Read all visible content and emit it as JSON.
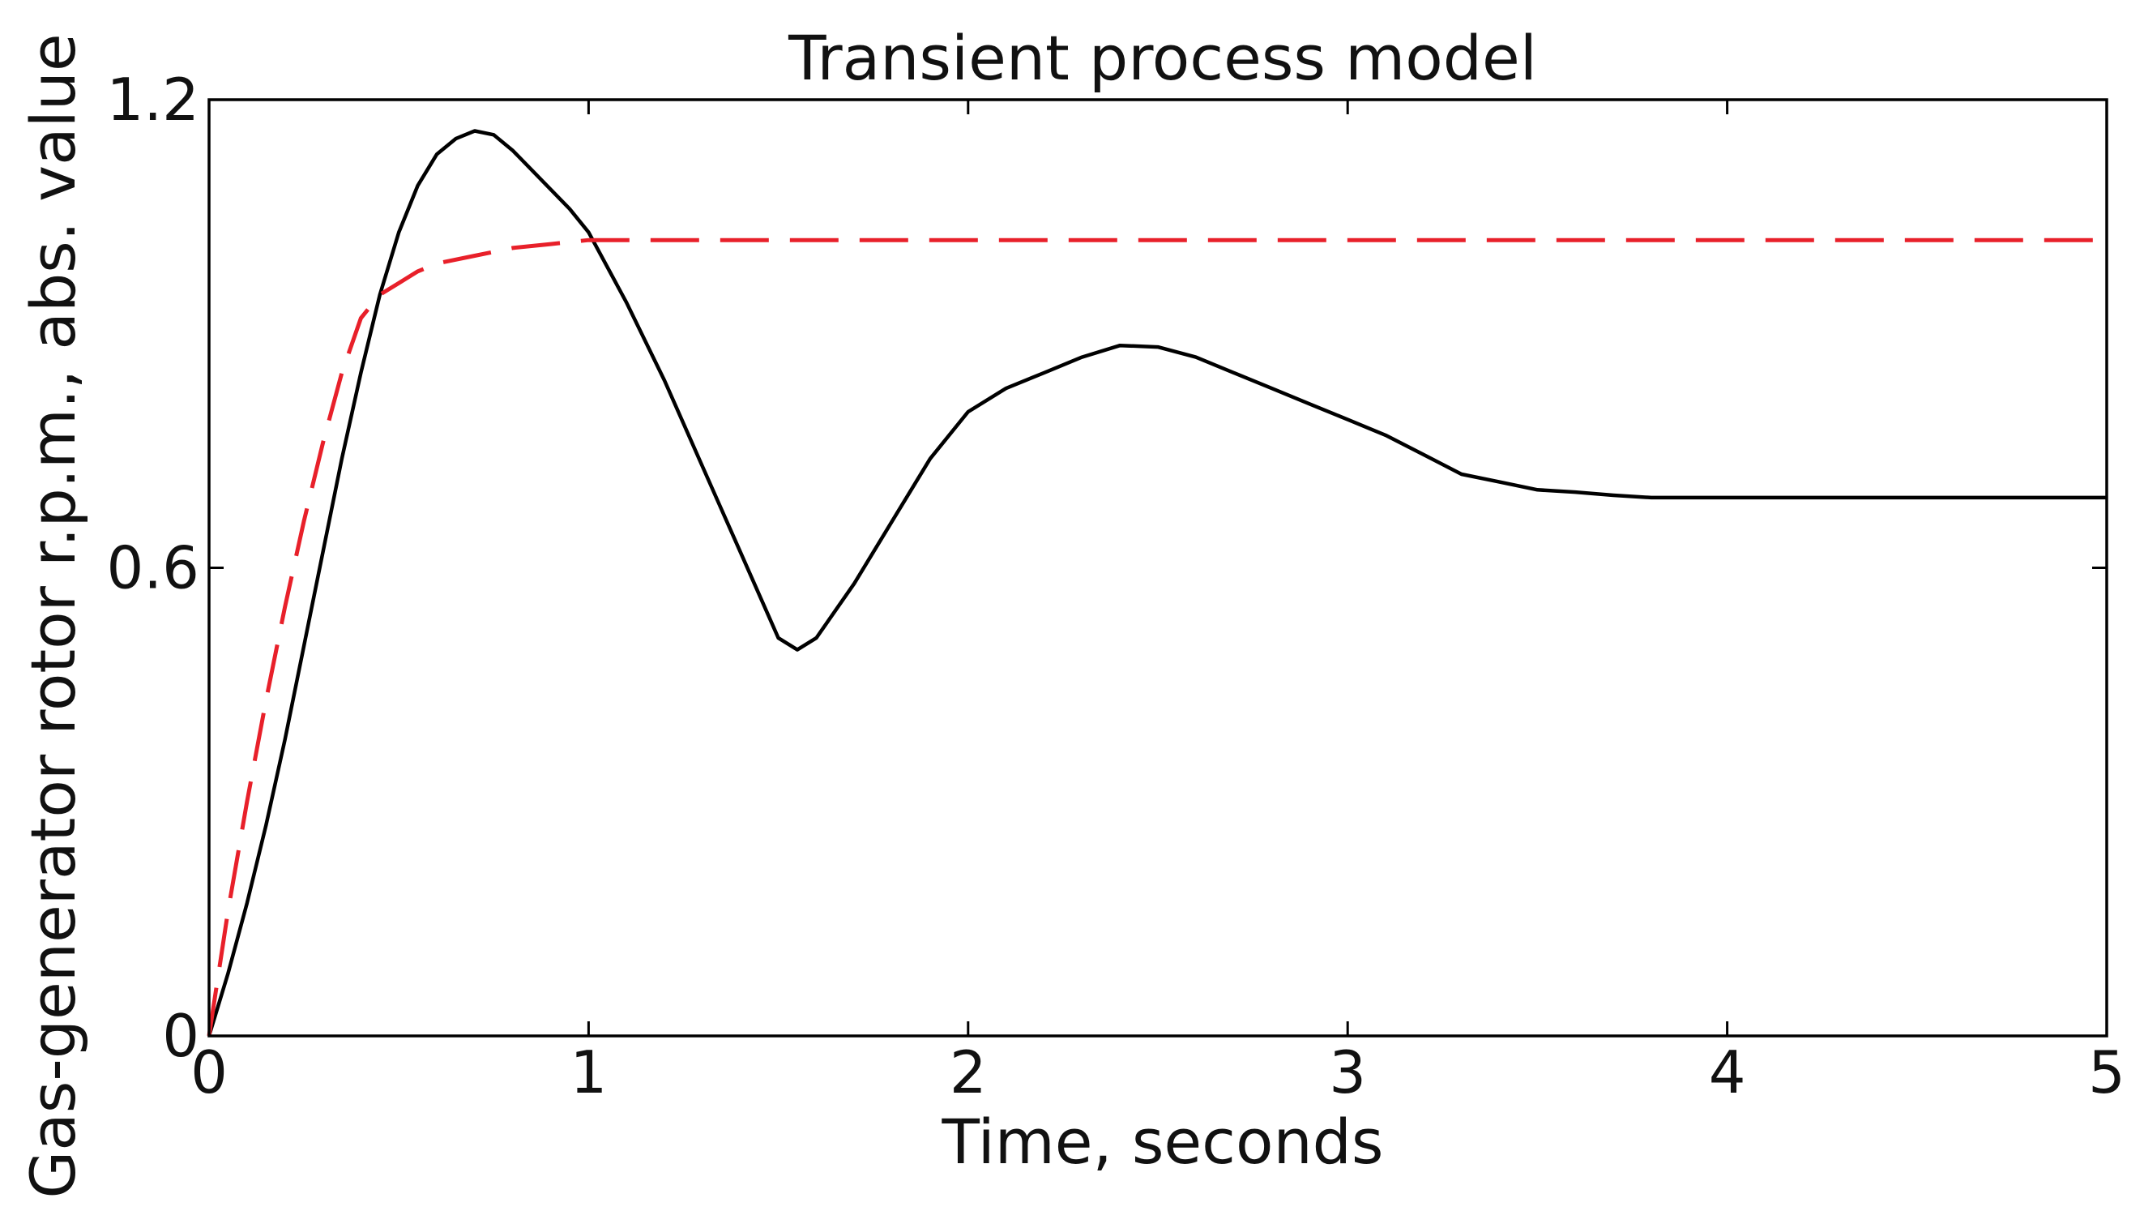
{
  "chart_data": {
    "type": "line",
    "title": "Transient process model",
    "xlabel": "Time, seconds",
    "ylabel": "Gas-generator rotor r.p.m., abs. value",
    "xlim": [
      0,
      5
    ],
    "ylim": [
      0,
      1.2
    ],
    "xticks": [
      0,
      1,
      2,
      3,
      4,
      5
    ],
    "xtick_labels": [
      "0",
      "1",
      "2",
      "3",
      "4",
      "5"
    ],
    "yticks": [
      0,
      0.6,
      1.2
    ],
    "ytick_labels": [
      "0",
      "0.6",
      "1.2"
    ],
    "grid": false,
    "series": [
      {
        "style": "solid",
        "color": "#000000",
        "x": [
          0,
          0.05,
          0.1,
          0.15,
          0.2,
          0.25,
          0.3,
          0.35,
          0.4,
          0.45,
          0.5,
          0.55,
          0.6,
          0.65,
          0.7,
          0.75,
          0.8,
          0.85,
          0.9,
          0.95,
          1.0,
          1.1,
          1.2,
          1.3,
          1.4,
          1.5,
          1.55,
          1.6,
          1.7,
          1.8,
          1.9,
          2.0,
          2.1,
          2.2,
          2.3,
          2.4,
          2.5,
          2.6,
          2.7,
          2.8,
          2.9,
          3.0,
          3.1,
          3.2,
          3.3,
          3.4,
          3.5,
          3.6,
          3.7,
          3.8,
          4.0,
          4.2,
          4.4,
          4.6,
          4.8,
          5.0
        ],
        "y": [
          0,
          0.08,
          0.17,
          0.27,
          0.38,
          0.5,
          0.62,
          0.74,
          0.85,
          0.95,
          1.03,
          1.09,
          1.13,
          1.15,
          1.16,
          1.155,
          1.135,
          1.11,
          1.085,
          1.06,
          1.03,
          0.94,
          0.84,
          0.73,
          0.62,
          0.51,
          0.495,
          0.51,
          0.58,
          0.66,
          0.74,
          0.8,
          0.83,
          0.85,
          0.87,
          0.885,
          0.883,
          0.87,
          0.85,
          0.83,
          0.81,
          0.79,
          0.77,
          0.745,
          0.72,
          0.71,
          0.7,
          0.697,
          0.693,
          0.69,
          0.69,
          0.69,
          0.69,
          0.69,
          0.69,
          0.69
        ]
      },
      {
        "style": "dashed",
        "color": "#e8202a",
        "x": [
          0,
          0.05,
          0.1,
          0.15,
          0.2,
          0.25,
          0.3,
          0.35,
          0.4,
          0.45,
          0.5,
          0.55,
          0.6,
          0.7,
          0.8,
          0.9,
          1.0,
          1.1,
          1.2,
          1.5,
          2.0,
          2.5,
          3.0,
          3.5,
          4.0,
          4.5,
          5.0
        ],
        "y": [
          0,
          0.16,
          0.3,
          0.43,
          0.55,
          0.66,
          0.76,
          0.85,
          0.92,
          0.95,
          0.965,
          0.98,
          0.99,
          1.0,
          1.01,
          1.015,
          1.02,
          1.02,
          1.02,
          1.02,
          1.02,
          1.02,
          1.02,
          1.02,
          1.02,
          1.02,
          1.02
        ]
      }
    ]
  }
}
